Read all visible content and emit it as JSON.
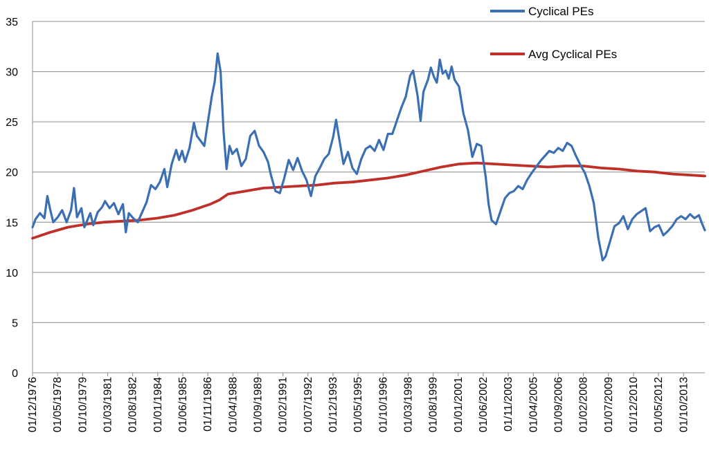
{
  "chart_data": {
    "type": "line",
    "title": "",
    "xlabel": "",
    "ylabel": "",
    "ylim": [
      0,
      35
    ],
    "yticks": [
      0,
      5,
      10,
      15,
      20,
      25,
      30,
      35
    ],
    "grid": "horizontal",
    "legend_position": "top-right",
    "x_tick_labels": [
      "01/12/1976",
      "01/05/1978",
      "01/10/1979",
      "01/03/1981",
      "01/08/1982",
      "01/01/1984",
      "01/06/1985",
      "01/11/1986",
      "01/04/1988",
      "01/09/1989",
      "01/02/1991",
      "01/07/1992",
      "01/12/1993",
      "01/05/1995",
      "01/10/1996",
      "01/03/1998",
      "01/08/1999",
      "01/01/2001",
      "01/06/2002",
      "01/11/2003",
      "01/04/2005",
      "01/09/2006",
      "01/02/2008",
      "01/07/2009",
      "01/12/2010",
      "01/05/2012",
      "01/10/2013"
    ],
    "series": [
      {
        "name": "Cyclical PEs",
        "color": "#3a6fb3",
        "points": [
          [
            "1976-12",
            14.5
          ],
          [
            "1977-02",
            15.3
          ],
          [
            "1977-05",
            15.9
          ],
          [
            "1977-08",
            15.4
          ],
          [
            "1977-10",
            17.6
          ],
          [
            "1977-12",
            16.2
          ],
          [
            "1978-02",
            15.0
          ],
          [
            "1978-05",
            15.5
          ],
          [
            "1978-08",
            16.2
          ],
          [
            "1978-11",
            15.0
          ],
          [
            "1979-02",
            16.2
          ],
          [
            "1979-04",
            18.4
          ],
          [
            "1979-06",
            15.5
          ],
          [
            "1979-09",
            16.4
          ],
          [
            "1979-11",
            14.5
          ],
          [
            "1980-03",
            15.9
          ],
          [
            "1980-05",
            14.7
          ],
          [
            "1980-08",
            16.0
          ],
          [
            "1980-11",
            16.5
          ],
          [
            "1981-01",
            17.1
          ],
          [
            "1981-04",
            16.4
          ],
          [
            "1981-07",
            16.9
          ],
          [
            "1981-10",
            15.8
          ],
          [
            "1982-01",
            16.8
          ],
          [
            "1982-03",
            14.0
          ],
          [
            "1982-05",
            15.9
          ],
          [
            "1982-08",
            15.4
          ],
          [
            "1982-11",
            15.0
          ],
          [
            "1983-02",
            16.0
          ],
          [
            "1983-05",
            17.0
          ],
          [
            "1983-08",
            18.7
          ],
          [
            "1983-11",
            18.3
          ],
          [
            "1984-02",
            19.0
          ],
          [
            "1984-05",
            20.3
          ],
          [
            "1984-07",
            18.5
          ],
          [
            "1984-10",
            20.8
          ],
          [
            "1985-01",
            22.2
          ],
          [
            "1985-03",
            21.2
          ],
          [
            "1985-05",
            22.1
          ],
          [
            "1985-07",
            21.0
          ],
          [
            "1985-10",
            22.4
          ],
          [
            "1986-01",
            24.9
          ],
          [
            "1986-03",
            23.6
          ],
          [
            "1986-05",
            23.2
          ],
          [
            "1986-08",
            22.6
          ],
          [
            "1986-10",
            24.6
          ],
          [
            "1987-01",
            27.5
          ],
          [
            "1987-03",
            29.0
          ],
          [
            "1987-05",
            31.8
          ],
          [
            "1987-07",
            30.0
          ],
          [
            "1987-09",
            24.0
          ],
          [
            "1987-11",
            20.3
          ],
          [
            "1988-01",
            22.6
          ],
          [
            "1988-03",
            21.8
          ],
          [
            "1988-06",
            22.3
          ],
          [
            "1988-09",
            20.6
          ],
          [
            "1988-12",
            21.3
          ],
          [
            "1989-03",
            23.6
          ],
          [
            "1989-06",
            24.1
          ],
          [
            "1989-09",
            22.6
          ],
          [
            "1989-12",
            22.0
          ],
          [
            "1990-03",
            21.0
          ],
          [
            "1990-05",
            19.7
          ],
          [
            "1990-08",
            18.1
          ],
          [
            "1990-11",
            17.9
          ],
          [
            "1991-02",
            19.4
          ],
          [
            "1991-05",
            21.2
          ],
          [
            "1991-08",
            20.2
          ],
          [
            "1991-11",
            21.4
          ],
          [
            "1992-02",
            20.1
          ],
          [
            "1992-05",
            19.2
          ],
          [
            "1992-08",
            17.6
          ],
          [
            "1992-11",
            19.6
          ],
          [
            "1993-02",
            20.4
          ],
          [
            "1993-05",
            21.3
          ],
          [
            "1993-08",
            21.8
          ],
          [
            "1993-11",
            23.5
          ],
          [
            "1994-01",
            25.2
          ],
          [
            "1994-03",
            23.4
          ],
          [
            "1994-06",
            20.8
          ],
          [
            "1994-09",
            22.0
          ],
          [
            "1994-12",
            20.4
          ],
          [
            "1995-03",
            19.8
          ],
          [
            "1995-06",
            21.3
          ],
          [
            "1995-09",
            22.3
          ],
          [
            "1995-12",
            22.6
          ],
          [
            "1996-03",
            22.1
          ],
          [
            "1996-06",
            23.2
          ],
          [
            "1996-09",
            22.2
          ],
          [
            "1996-12",
            23.8
          ],
          [
            "1997-03",
            23.8
          ],
          [
            "1997-06",
            25.1
          ],
          [
            "1997-09",
            26.4
          ],
          [
            "1997-12",
            27.5
          ],
          [
            "1998-03",
            29.6
          ],
          [
            "1998-05",
            30.1
          ],
          [
            "1998-08",
            27.6
          ],
          [
            "1998-10",
            25.1
          ],
          [
            "1998-12",
            28.0
          ],
          [
            "1999-03",
            29.2
          ],
          [
            "1999-05",
            30.4
          ],
          [
            "1999-07",
            29.5
          ],
          [
            "1999-09",
            28.9
          ],
          [
            "1999-11",
            31.2
          ],
          [
            "2000-01",
            29.8
          ],
          [
            "2000-03",
            30.1
          ],
          [
            "2000-05",
            29.3
          ],
          [
            "2000-07",
            30.5
          ],
          [
            "2000-09",
            29.2
          ],
          [
            "2000-12",
            28.5
          ],
          [
            "2001-03",
            25.8
          ],
          [
            "2001-06",
            24.2
          ],
          [
            "2001-09",
            21.5
          ],
          [
            "2001-12",
            22.8
          ],
          [
            "2002-03",
            22.6
          ],
          [
            "2002-06",
            19.5
          ],
          [
            "2002-08",
            16.8
          ],
          [
            "2002-10",
            15.2
          ],
          [
            "2003-01",
            14.8
          ],
          [
            "2003-04",
            16.1
          ],
          [
            "2003-07",
            17.4
          ],
          [
            "2003-10",
            17.9
          ],
          [
            "2004-01",
            18.1
          ],
          [
            "2004-04",
            18.6
          ],
          [
            "2004-07",
            18.3
          ],
          [
            "2004-10",
            19.2
          ],
          [
            "2005-01",
            19.9
          ],
          [
            "2005-04",
            20.5
          ],
          [
            "2005-07",
            21.1
          ],
          [
            "2005-10",
            21.6
          ],
          [
            "2006-01",
            22.1
          ],
          [
            "2006-04",
            21.9
          ],
          [
            "2006-07",
            22.4
          ],
          [
            "2006-10",
            22.1
          ],
          [
            "2007-01",
            22.9
          ],
          [
            "2007-04",
            22.6
          ],
          [
            "2007-07",
            21.6
          ],
          [
            "2007-10",
            20.7
          ],
          [
            "2008-01",
            19.9
          ],
          [
            "2008-04",
            18.6
          ],
          [
            "2008-07",
            16.9
          ],
          [
            "2008-10",
            13.5
          ],
          [
            "2009-01",
            11.2
          ],
          [
            "2009-03",
            11.6
          ],
          [
            "2009-06",
            13.1
          ],
          [
            "2009-09",
            14.6
          ],
          [
            "2009-12",
            14.9
          ],
          [
            "2010-03",
            15.6
          ],
          [
            "2010-06",
            14.3
          ],
          [
            "2010-09",
            15.3
          ],
          [
            "2010-12",
            15.8
          ],
          [
            "2011-03",
            16.1
          ],
          [
            "2011-06",
            16.4
          ],
          [
            "2011-09",
            14.1
          ],
          [
            "2011-12",
            14.5
          ],
          [
            "2012-03",
            14.7
          ],
          [
            "2012-06",
            13.7
          ],
          [
            "2012-09",
            14.1
          ],
          [
            "2012-12",
            14.6
          ],
          [
            "2013-03",
            15.3
          ],
          [
            "2013-06",
            15.6
          ],
          [
            "2013-09",
            15.3
          ],
          [
            "2013-12",
            15.8
          ],
          [
            "2014-03",
            15.4
          ],
          [
            "2014-06",
            15.7
          ],
          [
            "2014-08",
            14.9
          ],
          [
            "2014-10",
            14.2
          ]
        ]
      },
      {
        "name": "Avg Cyclical PEs",
        "color": "#c0302a",
        "points": [
          [
            "1976-12",
            13.4
          ],
          [
            "1977-12",
            14.0
          ],
          [
            "1978-12",
            14.5
          ],
          [
            "1979-12",
            14.8
          ],
          [
            "1980-12",
            15.0
          ],
          [
            "1981-12",
            15.1
          ],
          [
            "1982-12",
            15.2
          ],
          [
            "1983-12",
            15.4
          ],
          [
            "1984-12",
            15.7
          ],
          [
            "1985-12",
            16.2
          ],
          [
            "1986-12",
            16.8
          ],
          [
            "1987-06",
            17.2
          ],
          [
            "1987-12",
            17.8
          ],
          [
            "1988-12",
            18.1
          ],
          [
            "1989-12",
            18.4
          ],
          [
            "1990-12",
            18.5
          ],
          [
            "1991-12",
            18.6
          ],
          [
            "1992-12",
            18.7
          ],
          [
            "1993-12",
            18.9
          ],
          [
            "1994-12",
            19.0
          ],
          [
            "1995-12",
            19.2
          ],
          [
            "1996-12",
            19.4
          ],
          [
            "1997-12",
            19.7
          ],
          [
            "1998-12",
            20.1
          ],
          [
            "1999-12",
            20.5
          ],
          [
            "2000-12",
            20.8
          ],
          [
            "2001-12",
            20.9
          ],
          [
            "2002-12",
            20.8
          ],
          [
            "2003-12",
            20.7
          ],
          [
            "2004-12",
            20.6
          ],
          [
            "2005-12",
            20.5
          ],
          [
            "2006-12",
            20.6
          ],
          [
            "2007-12",
            20.6
          ],
          [
            "2008-12",
            20.4
          ],
          [
            "2009-12",
            20.3
          ],
          [
            "2010-12",
            20.1
          ],
          [
            "2011-12",
            20.0
          ],
          [
            "2012-12",
            19.8
          ],
          [
            "2013-12",
            19.7
          ],
          [
            "2014-10",
            19.6
          ]
        ]
      }
    ]
  }
}
